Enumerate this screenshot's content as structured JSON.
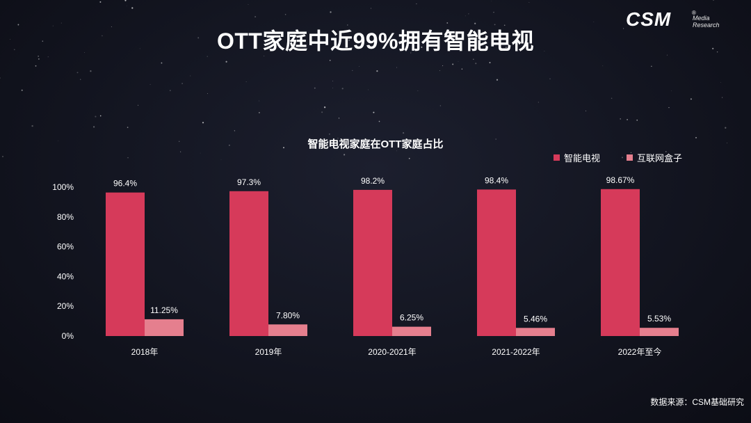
{
  "page": {
    "title": "OTT家庭中近99%拥有智能电视",
    "source": "数据来源：CSM基础研究"
  },
  "logo": {
    "main": "CSM",
    "reg": "®",
    "sub_line1": "Media",
    "sub_line2": "Research"
  },
  "colors": {
    "smart_tv": "#d63a5a",
    "box": "#e57f8e",
    "background": "#12141f"
  },
  "chart_data": {
    "type": "bar",
    "title": "智能电视家庭在OTT家庭占比",
    "categories": [
      "2018年",
      "2019年",
      "2020-2021年",
      "2021-2022年",
      "2022年至今"
    ],
    "series": [
      {
        "name": "智能电视",
        "values": [
          96.4,
          97.3,
          98.2,
          98.4,
          98.67
        ],
        "labels": [
          "96.4%",
          "97.3%",
          "98.2%",
          "98.4%",
          "98.67%"
        ]
      },
      {
        "name": "互联网盒子",
        "values": [
          11.25,
          7.8,
          6.25,
          5.46,
          5.53
        ],
        "labels": [
          "11.25%",
          "7.80%",
          "6.25%",
          "5.46%",
          "5.53%"
        ]
      }
    ],
    "y_ticks": [
      "0%",
      "20%",
      "40%",
      "60%",
      "80%",
      "100%"
    ],
    "ylim": [
      0,
      100
    ],
    "legend_position": "top-right",
    "grid": false
  }
}
